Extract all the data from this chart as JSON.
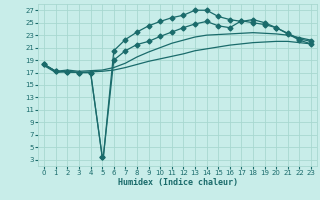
{
  "title": "",
  "xlabel": "Humidex (Indice chaleur)",
  "bg_color": "#c8ede9",
  "line_color": "#1a6b6b",
  "grid_color": "#a8d8d0",
  "xlim": [
    -0.5,
    23.5
  ],
  "ylim": [
    2,
    28
  ],
  "yticks": [
    3,
    5,
    7,
    9,
    11,
    13,
    15,
    17,
    19,
    21,
    23,
    25,
    27
  ],
  "xticks": [
    0,
    1,
    2,
    3,
    4,
    5,
    6,
    7,
    8,
    9,
    10,
    11,
    12,
    13,
    14,
    15,
    16,
    17,
    18,
    19,
    20,
    21,
    22,
    23
  ],
  "line1_x": [
    0,
    1,
    2,
    3,
    4,
    5,
    6,
    7,
    8,
    9,
    10,
    11,
    12,
    13,
    14,
    15,
    16,
    17,
    18,
    19,
    20,
    21,
    22,
    23
  ],
  "line1_y": [
    18.1,
    17.0,
    17.2,
    17.0,
    17.1,
    17.2,
    17.4,
    17.8,
    18.3,
    18.8,
    19.2,
    19.6,
    20.0,
    20.5,
    20.8,
    21.1,
    21.4,
    21.6,
    21.8,
    21.9,
    22.0,
    22.0,
    21.8,
    21.6
  ],
  "line2_x": [
    0,
    1,
    2,
    3,
    4,
    5,
    6,
    7,
    8,
    9,
    10,
    11,
    12,
    13,
    14,
    15,
    16,
    17,
    18,
    19,
    20,
    21,
    22,
    23
  ],
  "line2_y": [
    18.3,
    17.2,
    17.4,
    17.2,
    17.3,
    17.4,
    17.8,
    18.5,
    19.5,
    20.3,
    21.0,
    21.7,
    22.2,
    22.7,
    23.0,
    23.1,
    23.2,
    23.3,
    23.4,
    23.3,
    23.2,
    23.0,
    22.6,
    22.2
  ],
  "line3_x": [
    0,
    1,
    2,
    3,
    4,
    5,
    5.1,
    6,
    7,
    8,
    9,
    10,
    11,
    12,
    13,
    14,
    15,
    16,
    17,
    18,
    19,
    20,
    21,
    22,
    23
  ],
  "line3_y": [
    18.3,
    17.2,
    17.1,
    17.0,
    17.0,
    3.5,
    3.5,
    19.0,
    20.5,
    21.5,
    22.0,
    22.8,
    23.5,
    24.2,
    24.8,
    25.2,
    24.5,
    24.2,
    25.3,
    25.0,
    24.7,
    24.2,
    23.3,
    22.4,
    22.0
  ],
  "line3_markers_x": [
    0,
    1,
    2,
    3,
    4,
    5,
    6,
    7,
    8,
    9,
    10,
    11,
    12,
    13,
    14,
    15,
    16,
    17,
    18,
    19,
    20,
    21,
    22,
    23
  ],
  "line3_markers_y": [
    18.3,
    17.2,
    17.1,
    17.0,
    17.0,
    3.5,
    19.0,
    20.5,
    21.5,
    22.0,
    22.8,
    23.5,
    24.2,
    24.8,
    25.2,
    24.5,
    24.2,
    25.3,
    25.0,
    24.7,
    24.2,
    23.3,
    22.4,
    22.0
  ],
  "line4_x": [
    0,
    1,
    2,
    3,
    4,
    5,
    5.1,
    6,
    7,
    8,
    9,
    10,
    11,
    12,
    13,
    14,
    15,
    16,
    17,
    18,
    19,
    20,
    21,
    22,
    23
  ],
  "line4_y": [
    18.3,
    17.2,
    17.1,
    17.0,
    17.0,
    3.5,
    3.5,
    20.5,
    22.3,
    23.5,
    24.5,
    25.2,
    25.8,
    26.2,
    27.0,
    27.0,
    26.0,
    25.5,
    25.2,
    25.5,
    25.0,
    24.2,
    23.2,
    22.2,
    21.6
  ],
  "line4_markers_x": [
    0,
    1,
    2,
    3,
    4,
    5,
    6,
    7,
    8,
    9,
    10,
    11,
    12,
    13,
    14,
    15,
    16,
    17,
    18,
    19,
    20,
    21,
    22,
    23
  ],
  "line4_markers_y": [
    18.3,
    17.2,
    17.1,
    17.0,
    17.0,
    3.5,
    20.5,
    22.3,
    23.5,
    24.5,
    25.2,
    25.8,
    26.2,
    27.0,
    27.0,
    26.0,
    25.5,
    25.2,
    25.5,
    25.0,
    24.2,
    23.2,
    22.2,
    21.6
  ]
}
